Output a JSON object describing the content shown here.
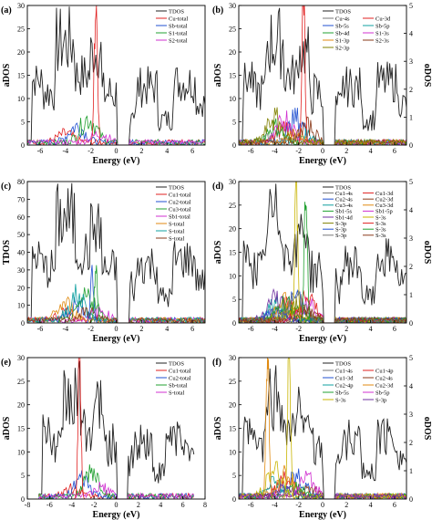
{
  "figure": {
    "title": ""
  },
  "colors": {
    "black": "#222222",
    "red": "#e02020",
    "blue": "#2050d0",
    "green": "#20a030",
    "magenta": "#d030d0",
    "orange": "#e08a10",
    "yellow": "#c8b400",
    "teal": "#10a0a0",
    "brown": "#8a3a1a",
    "purple": "#7030a0",
    "olive": "#808000",
    "gray": "#777777"
  },
  "chart_data": [
    {
      "id": "a",
      "panel_label": "(a)",
      "type": "line",
      "xlabel": "Energy (eV)",
      "ylabel": "aDOS",
      "ylabel_right": "",
      "xlim": [
        -7,
        7
      ],
      "xticks": [
        -6,
        -4,
        -2,
        0,
        2,
        4,
        6
      ],
      "ylim": [
        0,
        30
      ],
      "yticks": [
        0,
        5,
        10,
        15,
        20,
        25,
        30
      ],
      "legend": [
        "TDOS",
        "Cu-total",
        "Sb-total",
        "S1-total",
        "S2-total"
      ],
      "legend_colors": [
        "black",
        "red",
        "blue",
        "green",
        "magenta"
      ],
      "legend_cols": 1
    },
    {
      "id": "b",
      "panel_label": "(b)",
      "type": "line",
      "xlabel": "Energy (eV)",
      "ylabel": "aDOS",
      "ylabel_right": "oDOS",
      "xlim": [
        -7,
        7
      ],
      "xticks": [
        -6,
        -4,
        -2,
        0,
        2,
        4,
        6
      ],
      "ylim": [
        0,
        30
      ],
      "yticks": [
        0,
        5,
        10,
        15,
        20,
        25,
        30
      ],
      "ylim_right": [
        0,
        5
      ],
      "yticks_right": [
        0,
        1,
        2,
        3,
        4,
        5
      ],
      "legend": [
        "TDOS",
        "Cu-4s",
        "Cu-3d",
        "Sb-5s",
        "Sb-5p",
        "Sb-4d",
        "S1-3s",
        "S1-3p",
        "S2-3s",
        "S2-3p"
      ],
      "legend_colors": [
        "black",
        "gray",
        "red",
        "blue",
        "teal",
        "green",
        "magenta",
        "orange",
        "brown",
        "olive"
      ],
      "legend_cols": 2
    },
    {
      "id": "c",
      "panel_label": "(c)",
      "type": "line",
      "xlabel": "Energy (eV)",
      "ylabel": "TDOS",
      "ylabel_right": "",
      "xlim": [
        -7,
        7
      ],
      "xticks": [
        -6,
        -4,
        -2,
        0,
        2,
        4,
        6
      ],
      "ylim": [
        0,
        80
      ],
      "yticks": [
        0,
        10,
        20,
        30,
        40,
        50,
        60,
        70,
        80
      ],
      "legend": [
        "TDOS",
        "Cu1-total",
        "Cu2-total",
        "Cu3-total",
        "Sb1-total",
        "S-total",
        "S-total",
        "S-total"
      ],
      "legend_colors": [
        "black",
        "red",
        "blue",
        "green",
        "magenta",
        "orange",
        "teal",
        "brown"
      ],
      "legend_cols": 1
    },
    {
      "id": "d",
      "panel_label": "(d)",
      "type": "line",
      "xlabel": "Energy (eV)",
      "ylabel": "aDOS",
      "ylabel_right": "oDOS",
      "xlim": [
        -7,
        7
      ],
      "xticks": [
        -6,
        -4,
        -2,
        0,
        2,
        4,
        6
      ],
      "ylim": [
        0,
        30
      ],
      "yticks": [
        0,
        5,
        10,
        15,
        20,
        25,
        30
      ],
      "ylim_right": [
        0,
        5
      ],
      "yticks_right": [
        0,
        1,
        2,
        3,
        4,
        5
      ],
      "legend": [
        "TDOS",
        "Cu1-4s",
        "Cu1-3d",
        "Cu2-4s",
        "Cu2-3d",
        "Cu3-4s",
        "Cu3-3d",
        "Sb1-5s",
        "Sb1-5p",
        "Sb1-4d",
        "S-3s",
        "S-3p",
        "S-3s",
        "S-3p",
        "S-3s",
        "S-3p",
        "S-3s"
      ],
      "legend_colors": [
        "black",
        "gray",
        "red",
        "blue",
        "brown",
        "teal",
        "orange",
        "green",
        "magenta",
        "purple",
        "yellow",
        "olive",
        "red",
        "blue",
        "green",
        "gray",
        "brown"
      ],
      "legend_cols": 2
    },
    {
      "id": "e",
      "panel_label": "(e)",
      "type": "line",
      "xlabel": "Energy (eV)",
      "ylabel": "aDOS",
      "ylabel_right": "",
      "xlim": [
        -8,
        8
      ],
      "xticks": [
        -8,
        -6,
        -4,
        -2,
        0,
        2,
        4,
        6,
        8
      ],
      "ylim": [
        0,
        30
      ],
      "yticks": [
        0,
        5,
        10,
        15,
        20,
        25,
        30
      ],
      "legend": [
        "TDOS",
        "Cu1-total",
        "Cu2-total",
        "Sb-total",
        "S-total"
      ],
      "legend_colors": [
        "black",
        "red",
        "blue",
        "green",
        "magenta"
      ],
      "legend_cols": 1
    },
    {
      "id": "f",
      "panel_label": "(f)",
      "type": "line",
      "xlabel": "Energy (eV)",
      "ylabel": "aDOS",
      "ylabel_right": "oDOS",
      "xlim": [
        -7,
        7
      ],
      "xticks": [
        -6,
        -4,
        -2,
        0,
        2,
        4,
        6
      ],
      "ylim": [
        0,
        30
      ],
      "yticks": [
        0,
        5,
        10,
        15,
        20,
        25,
        30
      ],
      "ylim_right": [
        0,
        5
      ],
      "yticks_right": [
        0,
        1,
        2,
        3,
        4,
        5
      ],
      "legend": [
        "TDOS",
        "Cu1-4s",
        "Cu1-4p",
        "Cu1-3d",
        "Cu2-4s",
        "Cu2-4p",
        "Cu2-3d",
        "Sb-5s",
        "Sb-5p",
        "S-3s",
        "S-3p"
      ],
      "legend_colors": [
        "black",
        "gray",
        "red",
        "blue",
        "brown",
        "teal",
        "orange",
        "green",
        "magenta",
        "yellow",
        "purple"
      ],
      "legend_cols": 2
    }
  ]
}
